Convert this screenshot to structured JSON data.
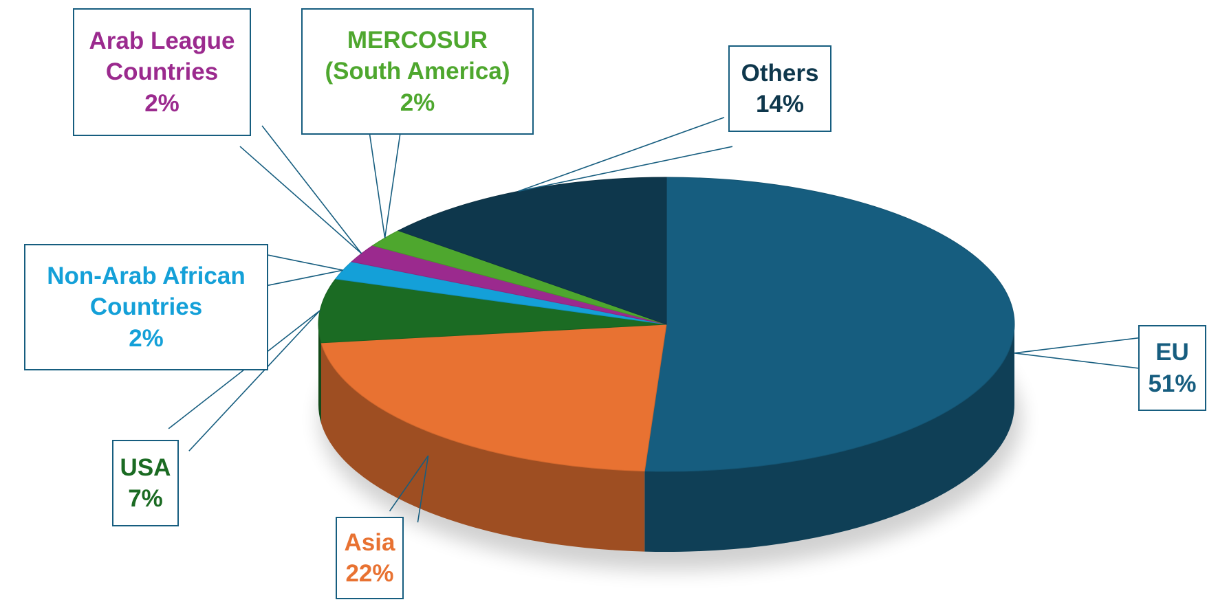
{
  "chart_data": {
    "type": "pie3d",
    "categories": [
      "EU",
      "Asia",
      "USA",
      "Non-Arab African Countries",
      "Arab League Countries",
      "MERCOSUR (South America)",
      "Others"
    ],
    "values": [
      51,
      22,
      7,
      2,
      2,
      2,
      14
    ],
    "value_labels": [
      "51%",
      "22%",
      "7%",
      "2%",
      "2%",
      "2%",
      "14%"
    ],
    "colors": [
      "#165d7f",
      "#e87232",
      "#1b6b23",
      "#14a0d8",
      "#9b2a8e",
      "#4ea72e",
      "#0e374c"
    ]
  }
}
